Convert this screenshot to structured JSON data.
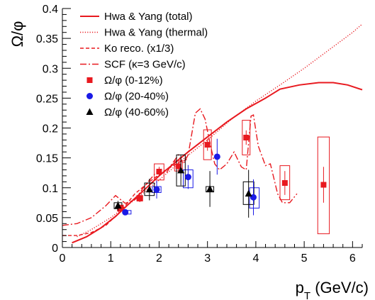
{
  "chart_data": {
    "type": "scatter",
    "title": "",
    "xlabel": "p_T (GeV/c)",
    "ylabel": "Ω/φ",
    "xlim": [
      0,
      6.2
    ],
    "ylim": [
      0,
      0.4
    ],
    "x_ticks": [
      0,
      1,
      2,
      3,
      4,
      5,
      6
    ],
    "y_ticks": [
      0,
      0.05,
      0.1,
      0.15,
      0.2,
      0.25,
      0.3,
      0.35,
      0.4
    ],
    "x_tick_labels": [
      "0",
      "1",
      "2",
      "3",
      "4",
      "5",
      "6"
    ],
    "y_tick_labels": [
      "0",
      "0.05",
      "0.1",
      "0.15",
      "0.2",
      "0.25",
      "0.3",
      "0.35",
      "0.4"
    ],
    "grid": false,
    "legend_position": "top-left",
    "legend": [
      {
        "label": "Hwa & Yang (total)",
        "kind": "line",
        "style": "solid",
        "color": "#e8191f"
      },
      {
        "label": "Hwa & Yang (thermal)",
        "kind": "line",
        "style": "dotted",
        "color": "#e8191f"
      },
      {
        "label": "Ko reco. (x1/3)",
        "kind": "line",
        "style": "dashed",
        "color": "#e8191f"
      },
      {
        "label": "SCF (κ=3 GeV/c)",
        "kind": "line",
        "style": "dashdot",
        "color": "#e8191f"
      },
      {
        "label": "Ω/φ (0-12%)",
        "kind": "marker",
        "marker": "square",
        "color": "#e8191f"
      },
      {
        "label": "Ω/φ (20-40%)",
        "kind": "marker",
        "marker": "circle",
        "color": "#1a1ae6"
      },
      {
        "label": "Ω/φ (40-60%)",
        "kind": "marker",
        "marker": "triangle",
        "color": "#000000"
      }
    ],
    "curves": [
      {
        "name": "Hwa & Yang (total)",
        "style": "solid",
        "color": "#e8191f",
        "points": [
          [
            0.2,
            0.008
          ],
          [
            0.5,
            0.018
          ],
          [
            0.8,
            0.033
          ],
          [
            1.1,
            0.052
          ],
          [
            1.4,
            0.075
          ],
          [
            1.7,
            0.097
          ],
          [
            2.0,
            0.12
          ],
          [
            2.3,
            0.14
          ],
          [
            2.6,
            0.16
          ],
          [
            3.0,
            0.185
          ],
          [
            3.4,
            0.21
          ],
          [
            3.8,
            0.232
          ],
          [
            4.2,
            0.25
          ],
          [
            4.5,
            0.265
          ],
          [
            4.9,
            0.272
          ],
          [
            5.3,
            0.276
          ],
          [
            5.6,
            0.276
          ],
          [
            5.9,
            0.272
          ],
          [
            6.2,
            0.264
          ]
        ]
      },
      {
        "name": "Hwa & Yang (thermal)",
        "style": "dotted",
        "color": "#e8191f",
        "points": [
          [
            0.3,
            0.018
          ],
          [
            0.6,
            0.03
          ],
          [
            1.0,
            0.05
          ],
          [
            1.5,
            0.08
          ],
          [
            2.0,
            0.113
          ],
          [
            2.5,
            0.148
          ],
          [
            3.0,
            0.18
          ],
          [
            3.5,
            0.215
          ],
          [
            4.0,
            0.245
          ],
          [
            4.5,
            0.272
          ],
          [
            5.0,
            0.3
          ],
          [
            5.5,
            0.33
          ],
          [
            6.0,
            0.36
          ],
          [
            6.2,
            0.374
          ]
        ]
      },
      {
        "name": "Ko reco. (x1/3)",
        "style": "dashed",
        "color": "#e8191f",
        "points": [
          [
            0.0,
            0.02
          ],
          [
            0.3,
            0.02
          ],
          [
            0.6,
            0.025
          ],
          [
            0.9,
            0.037
          ],
          [
            1.2,
            0.06
          ],
          [
            1.5,
            0.09
          ],
          [
            1.8,
            0.11
          ],
          [
            2.1,
            0.128
          ],
          [
            2.4,
            0.142
          ],
          [
            2.6,
            0.148
          ]
        ]
      },
      {
        "name": "SCF (κ=3 GeV/c)",
        "style": "dashdot",
        "color": "#e8191f",
        "points": [
          [
            0.0,
            0.037
          ],
          [
            0.3,
            0.04
          ],
          [
            0.6,
            0.05
          ],
          [
            0.9,
            0.07
          ],
          [
            1.1,
            0.087
          ],
          [
            1.3,
            0.074
          ],
          [
            1.5,
            0.08
          ],
          [
            1.7,
            0.103
          ],
          [
            1.9,
            0.122
          ],
          [
            2.0,
            0.13
          ],
          [
            2.15,
            0.125
          ],
          [
            2.25,
            0.138
          ],
          [
            2.4,
            0.155
          ],
          [
            2.5,
            0.14
          ],
          [
            2.6,
            0.155
          ],
          [
            2.75,
            0.225
          ],
          [
            2.85,
            0.232
          ],
          [
            2.95,
            0.215
          ],
          [
            3.05,
            0.175
          ],
          [
            3.15,
            0.14
          ],
          [
            3.25,
            0.13
          ],
          [
            3.4,
            0.14
          ],
          [
            3.55,
            0.16
          ],
          [
            3.7,
            0.135
          ],
          [
            3.8,
            0.13
          ],
          [
            3.9,
            0.22
          ],
          [
            3.95,
            0.222
          ],
          [
            4.05,
            0.17
          ],
          [
            4.2,
            0.137
          ],
          [
            4.3,
            0.14
          ],
          [
            4.45,
            0.09
          ],
          [
            4.55,
            0.075
          ],
          [
            4.7,
            0.075
          ],
          [
            4.8,
            0.085
          ],
          [
            4.85,
            0.09
          ]
        ]
      }
    ],
    "series": [
      {
        "name": "Ω/φ (0-12%)",
        "marker": "square",
        "color": "#e8191f",
        "points": [
          {
            "x": 1.2,
            "y": 0.066,
            "yerr": 0.005,
            "sys": [
              1.14,
              1.26,
              0.061,
              0.071
            ]
          },
          {
            "x": 1.6,
            "y": 0.082,
            "yerr": 0.006,
            "sys": [
              1.54,
              1.66,
              0.078,
              0.087
            ]
          },
          {
            "x": 2.0,
            "y": 0.127,
            "yerr": 0.008,
            "sys": [
              1.9,
              2.1,
              0.113,
              0.14
            ]
          },
          {
            "x": 2.4,
            "y": 0.136,
            "yerr": 0.008,
            "sys": [
              2.32,
              2.48,
              0.128,
              0.145
            ]
          },
          {
            "x": 3.0,
            "y": 0.172,
            "yerr": 0.01,
            "sys": [
              2.92,
              3.08,
              0.147,
              0.197
            ]
          },
          {
            "x": 3.8,
            "y": 0.184,
            "yerr": 0.012,
            "sys": [
              3.72,
              3.88,
              0.155,
              0.213
            ]
          },
          {
            "x": 4.6,
            "y": 0.108,
            "yerr": 0.02,
            "sys": [
              4.5,
              4.7,
              0.08,
              0.137
            ]
          },
          {
            "x": 5.4,
            "y": 0.105,
            "yerr": 0.03,
            "sys": [
              5.28,
              5.52,
              0.023,
              0.185
            ]
          }
        ]
      },
      {
        "name": "Ω/φ (20-40%)",
        "marker": "circle",
        "color": "#1a1ae6",
        "points": [
          {
            "x": 1.3,
            "y": 0.059,
            "yerr": 0.003,
            "xerr": 0.05,
            "sys": [
              1.26,
              1.42,
              0.056,
              0.062
            ]
          },
          {
            "x": 1.95,
            "y": 0.097,
            "yerr": 0.015,
            "sys": [
              1.86,
              2.04,
              0.092,
              0.102
            ]
          },
          {
            "x": 2.6,
            "y": 0.118,
            "yerr": 0.02,
            "sys": [
              2.5,
              2.7,
              0.1,
              0.13
            ]
          },
          {
            "x": 3.2,
            "y": 0.152,
            "yerr": 0.03
          },
          {
            "x": 3.95,
            "y": 0.084,
            "yerr": 0.03,
            "sys": [
              3.87,
              4.07,
              0.066,
              0.1
            ]
          }
        ]
      },
      {
        "name": "Ω/φ (40-60%)",
        "marker": "triangle",
        "color": "#000000",
        "points": [
          {
            "x": 1.15,
            "y": 0.07,
            "yerr": 0.008,
            "sys": [
              1.07,
              1.23,
              0.065,
              0.075
            ]
          },
          {
            "x": 1.8,
            "y": 0.097,
            "yerr": 0.018,
            "sys": [
              1.7,
              1.9,
              0.087,
              0.108
            ]
          },
          {
            "x": 2.45,
            "y": 0.129,
            "yerr": 0.025,
            "sys": [
              2.36,
              2.54,
              0.103,
              0.155
            ]
          },
          {
            "x": 3.05,
            "y": 0.098,
            "yerr": 0.03,
            "sys": [
              2.97,
              3.13,
              0.093,
              0.102
            ]
          },
          {
            "x": 3.85,
            "y": 0.09,
            "yerr": 0.04,
            "sys": [
              3.74,
              3.96,
              0.072,
              0.11
            ]
          }
        ]
      }
    ]
  }
}
